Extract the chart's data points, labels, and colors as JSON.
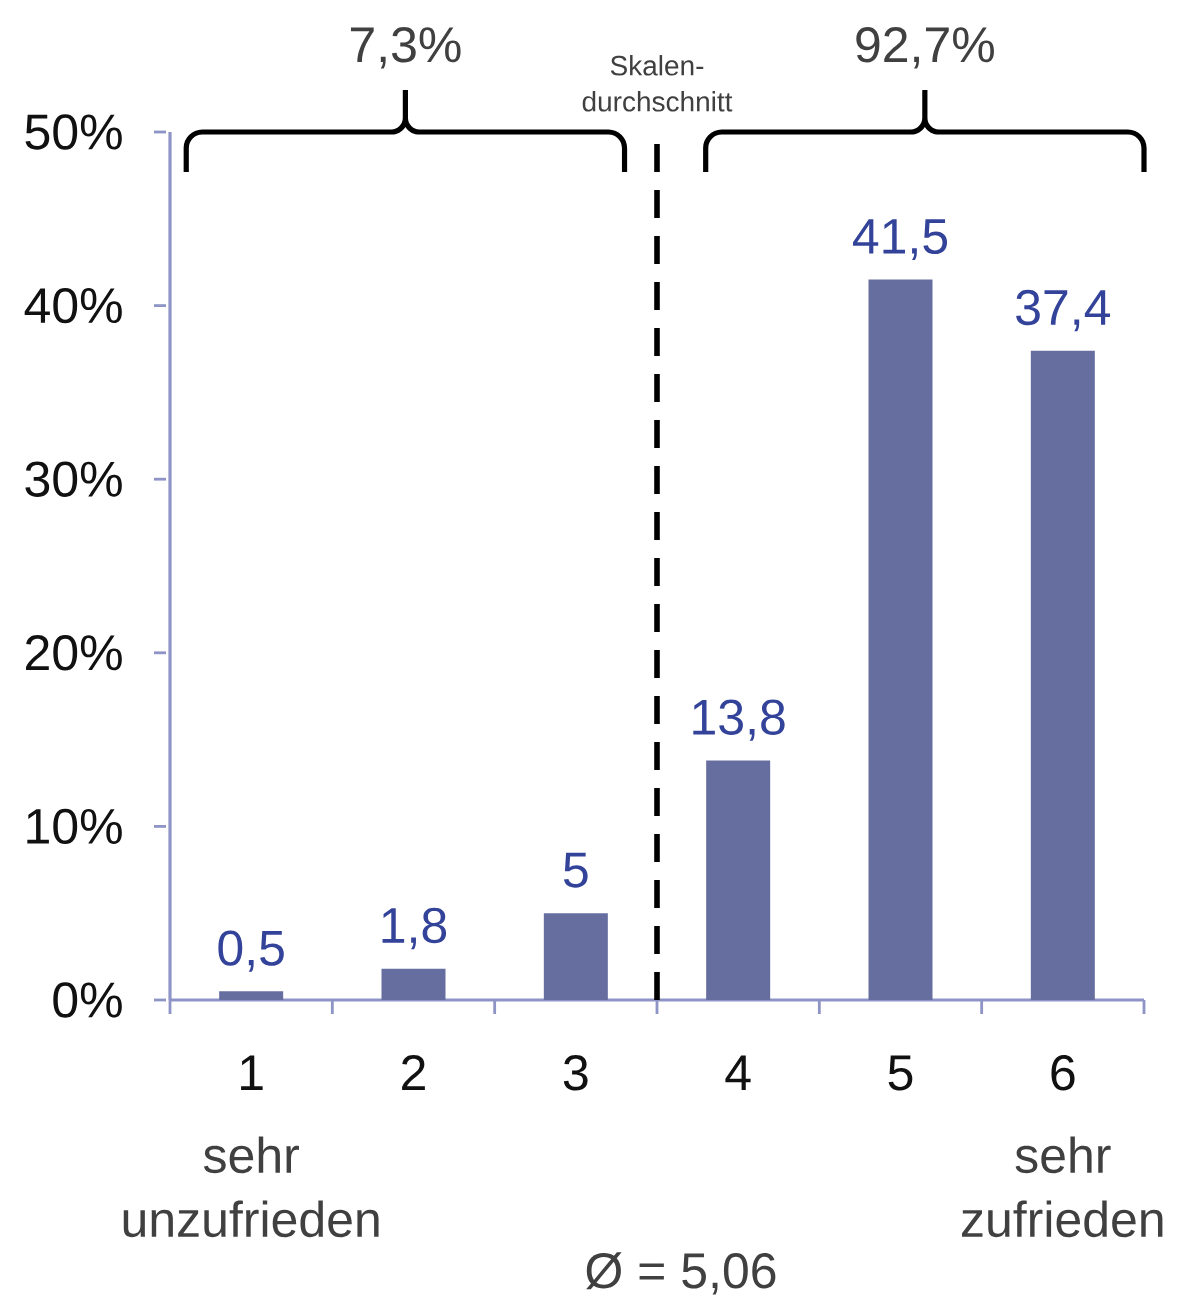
{
  "chart_data": {
    "type": "bar",
    "x": [
      1,
      2,
      3,
      4,
      5,
      6
    ],
    "values": [
      0.5,
      1.8,
      5,
      13.8,
      41.5,
      37.4
    ],
    "value_labels": [
      "0,5",
      "1,8",
      "5",
      "13,8",
      "41,5",
      "37,4"
    ],
    "color": "#666ea0",
    "xlim": [
      0.5,
      6.5
    ],
    "xticks": [
      {
        "value": 0.5,
        "label": null
      },
      1,
      {
        "value": 1.5,
        "label": null
      },
      2,
      {
        "value": 2.5,
        "label": null
      },
      3,
      {
        "value": 3.5,
        "label": null
      },
      4,
      {
        "value": 4.5,
        "label": null
      },
      5,
      {
        "value": 5.5,
        "label": null
      },
      6,
      {
        "value": 6.5,
        "label": null
      }
    ],
    "ylim": [
      0,
      50
    ],
    "yticks": [
      {
        "value": 0,
        "label": "0%"
      },
      {
        "value": 10,
        "label": "10%"
      },
      {
        "value": 20,
        "label": "20%"
      },
      {
        "value": 30,
        "label": "30%"
      },
      {
        "value": 40,
        "label": "40%"
      },
      {
        "value": 50,
        "label": "50%"
      }
    ],
    "ref_lines": [
      {
        "axis": "x",
        "value": 3.5,
        "label": "Skalen-durchschnitt",
        "color": "#000000",
        "line_style": "dashed"
      }
    ],
    "annotations": [
      "7,3%",
      "92,7%",
      "sehr unzufrieden",
      "sehr zufrieden",
      "Ø = 5,06"
    ]
  }
}
